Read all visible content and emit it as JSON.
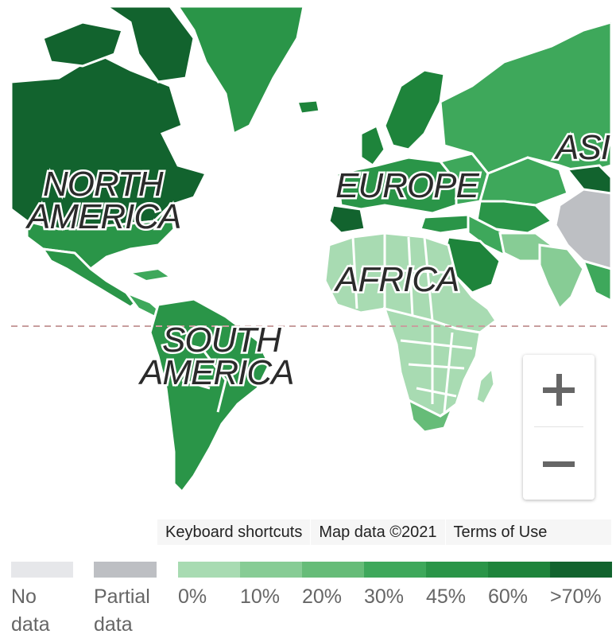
{
  "map": {
    "continents": {
      "north_america": [
        "NORTH",
        "AMERICA"
      ],
      "south_america": [
        "SOUTH",
        "AMERICA"
      ],
      "europe": "EUROPE",
      "africa": "AFRICA",
      "asia": "ASI"
    },
    "colors": {
      "ocean": "#ffffff",
      "no_data": "#e6e7ea",
      "partial": "#bdbfc3",
      "c0": "#a8dbb2",
      "c10": "#87cc95",
      "c20": "#66bc78",
      "c30": "#3ea85b",
      "c45": "#2a9548",
      "c60": "#1e843b",
      "c70": "#12632e",
      "equator": "#c89e9e"
    },
    "zoom": {
      "in_icon": "plus-icon",
      "out_icon": "minus-icon"
    },
    "attribution": {
      "shortcuts": "Keyboard shortcuts",
      "map_data": "Map data ©2021",
      "terms": "Terms of Use"
    }
  },
  "legend": [
    {
      "label_lines": [
        "No",
        "data"
      ],
      "color": "#e6e7ea"
    },
    {
      "label_lines": [
        "Partial",
        "data"
      ],
      "color": "#bdbfc3"
    },
    {
      "label": "0%",
      "color": "#a8dbb2"
    },
    {
      "label": "10%",
      "color": "#87cc95"
    },
    {
      "label": "20%",
      "color": "#66bc78"
    },
    {
      "label": "30%",
      "color": "#3ea85b"
    },
    {
      "label": "45%",
      "color": "#2a9548"
    },
    {
      "label": "60%",
      "color": "#1e843b"
    },
    {
      "label": ">70%",
      "color": "#12632e"
    }
  ]
}
